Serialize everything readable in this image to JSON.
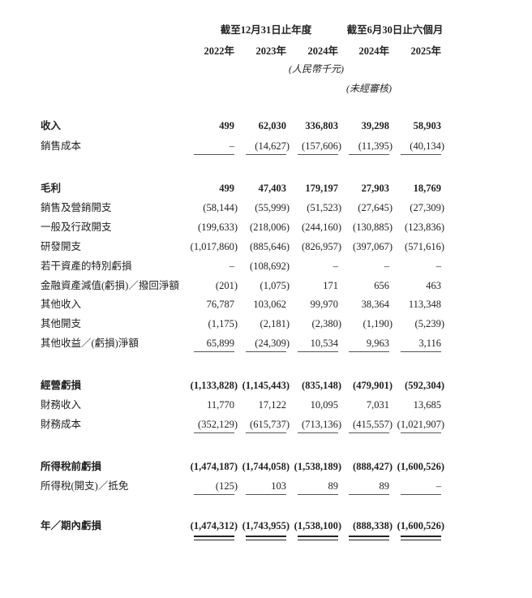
{
  "header": {
    "group_annual": "截至12月31日止年度",
    "group_interim": "截至6月30日止六個月",
    "years": [
      "2022年",
      "2023年",
      "2024年",
      "2024年",
      "2025年"
    ],
    "currency_note": "(人民幣千元)",
    "unaudited_note": "(未經審核)"
  },
  "rows": [
    {
      "label": "收入",
      "bold": true,
      "values": [
        "499",
        "62,030",
        "336,803",
        "39,298",
        "58,903"
      ]
    },
    {
      "label": "銷售成本",
      "bold": false,
      "values": [
        "–",
        "(14,627)",
        "(157,606)",
        "(11,395)",
        "(40,134)"
      ],
      "rule": "single"
    },
    {
      "label": "毛利",
      "bold": true,
      "values": [
        "499",
        "47,403",
        "179,197",
        "27,903",
        "18,769"
      ]
    },
    {
      "label": "銷售及營銷開支",
      "bold": false,
      "values": [
        "(58,144)",
        "(55,999)",
        "(51,523)",
        "(27,645)",
        "(27,309)"
      ]
    },
    {
      "label": "一般及行政開支",
      "bold": false,
      "values": [
        "(199,633)",
        "(218,006)",
        "(244,160)",
        "(130,885)",
        "(123,836)"
      ]
    },
    {
      "label": "研發開支",
      "bold": false,
      "values": [
        "(1,017,860)",
        "(885,646)",
        "(826,957)",
        "(397,067)",
        "(571,616)"
      ]
    },
    {
      "label": "若干資產的特別虧損",
      "bold": false,
      "values": [
        "–",
        "(108,692)",
        "–",
        "–",
        "–"
      ]
    },
    {
      "label": "金融資產減值(虧損)／撥回淨額",
      "bold": false,
      "values": [
        "(201)",
        "(1,075)",
        "171",
        "656",
        "463"
      ]
    },
    {
      "label": "其他收入",
      "bold": false,
      "values": [
        "76,787",
        "103,062",
        "99,970",
        "38,364",
        "113,348"
      ]
    },
    {
      "label": "其他開支",
      "bold": false,
      "values": [
        "(1,175)",
        "(2,181)",
        "(2,380)",
        "(1,190)",
        "(5,239)"
      ]
    },
    {
      "label": "其他收益／(虧損)淨額",
      "bold": false,
      "values": [
        "65,899",
        "(24,309)",
        "10,534",
        "9,963",
        "3,116"
      ],
      "rule": "single"
    },
    {
      "label": "經營虧損",
      "bold": true,
      "values": [
        "(1,133,828)",
        "(1,145,443)",
        "(835,148)",
        "(479,901)",
        "(592,304)"
      ]
    },
    {
      "label": "財務收入",
      "bold": false,
      "values": [
        "11,770",
        "17,122",
        "10,095",
        "7,031",
        "13,685"
      ]
    },
    {
      "label": "財務成本",
      "bold": false,
      "values": [
        "(352,129)",
        "(615,737)",
        "(713,136)",
        "(415,557)",
        "(1,021,907)"
      ],
      "rule": "single"
    },
    {
      "label": "所得稅前虧損",
      "bold": true,
      "values": [
        "(1,474,187)",
        "(1,744,058)",
        "(1,538,189)",
        "(888,427)",
        "(1,600,526)"
      ]
    },
    {
      "label": "所得稅(開支)／抵免",
      "bold": false,
      "values": [
        "(125)",
        "103",
        "89",
        "89",
        "–"
      ],
      "rule": "single"
    },
    {
      "label": "年／期內虧損",
      "bold": true,
      "values": [
        "(1,474,312)",
        "(1,743,955)",
        "(1,538,100)",
        "(888,338)",
        "(1,600,526)"
      ],
      "rule": "double"
    }
  ]
}
